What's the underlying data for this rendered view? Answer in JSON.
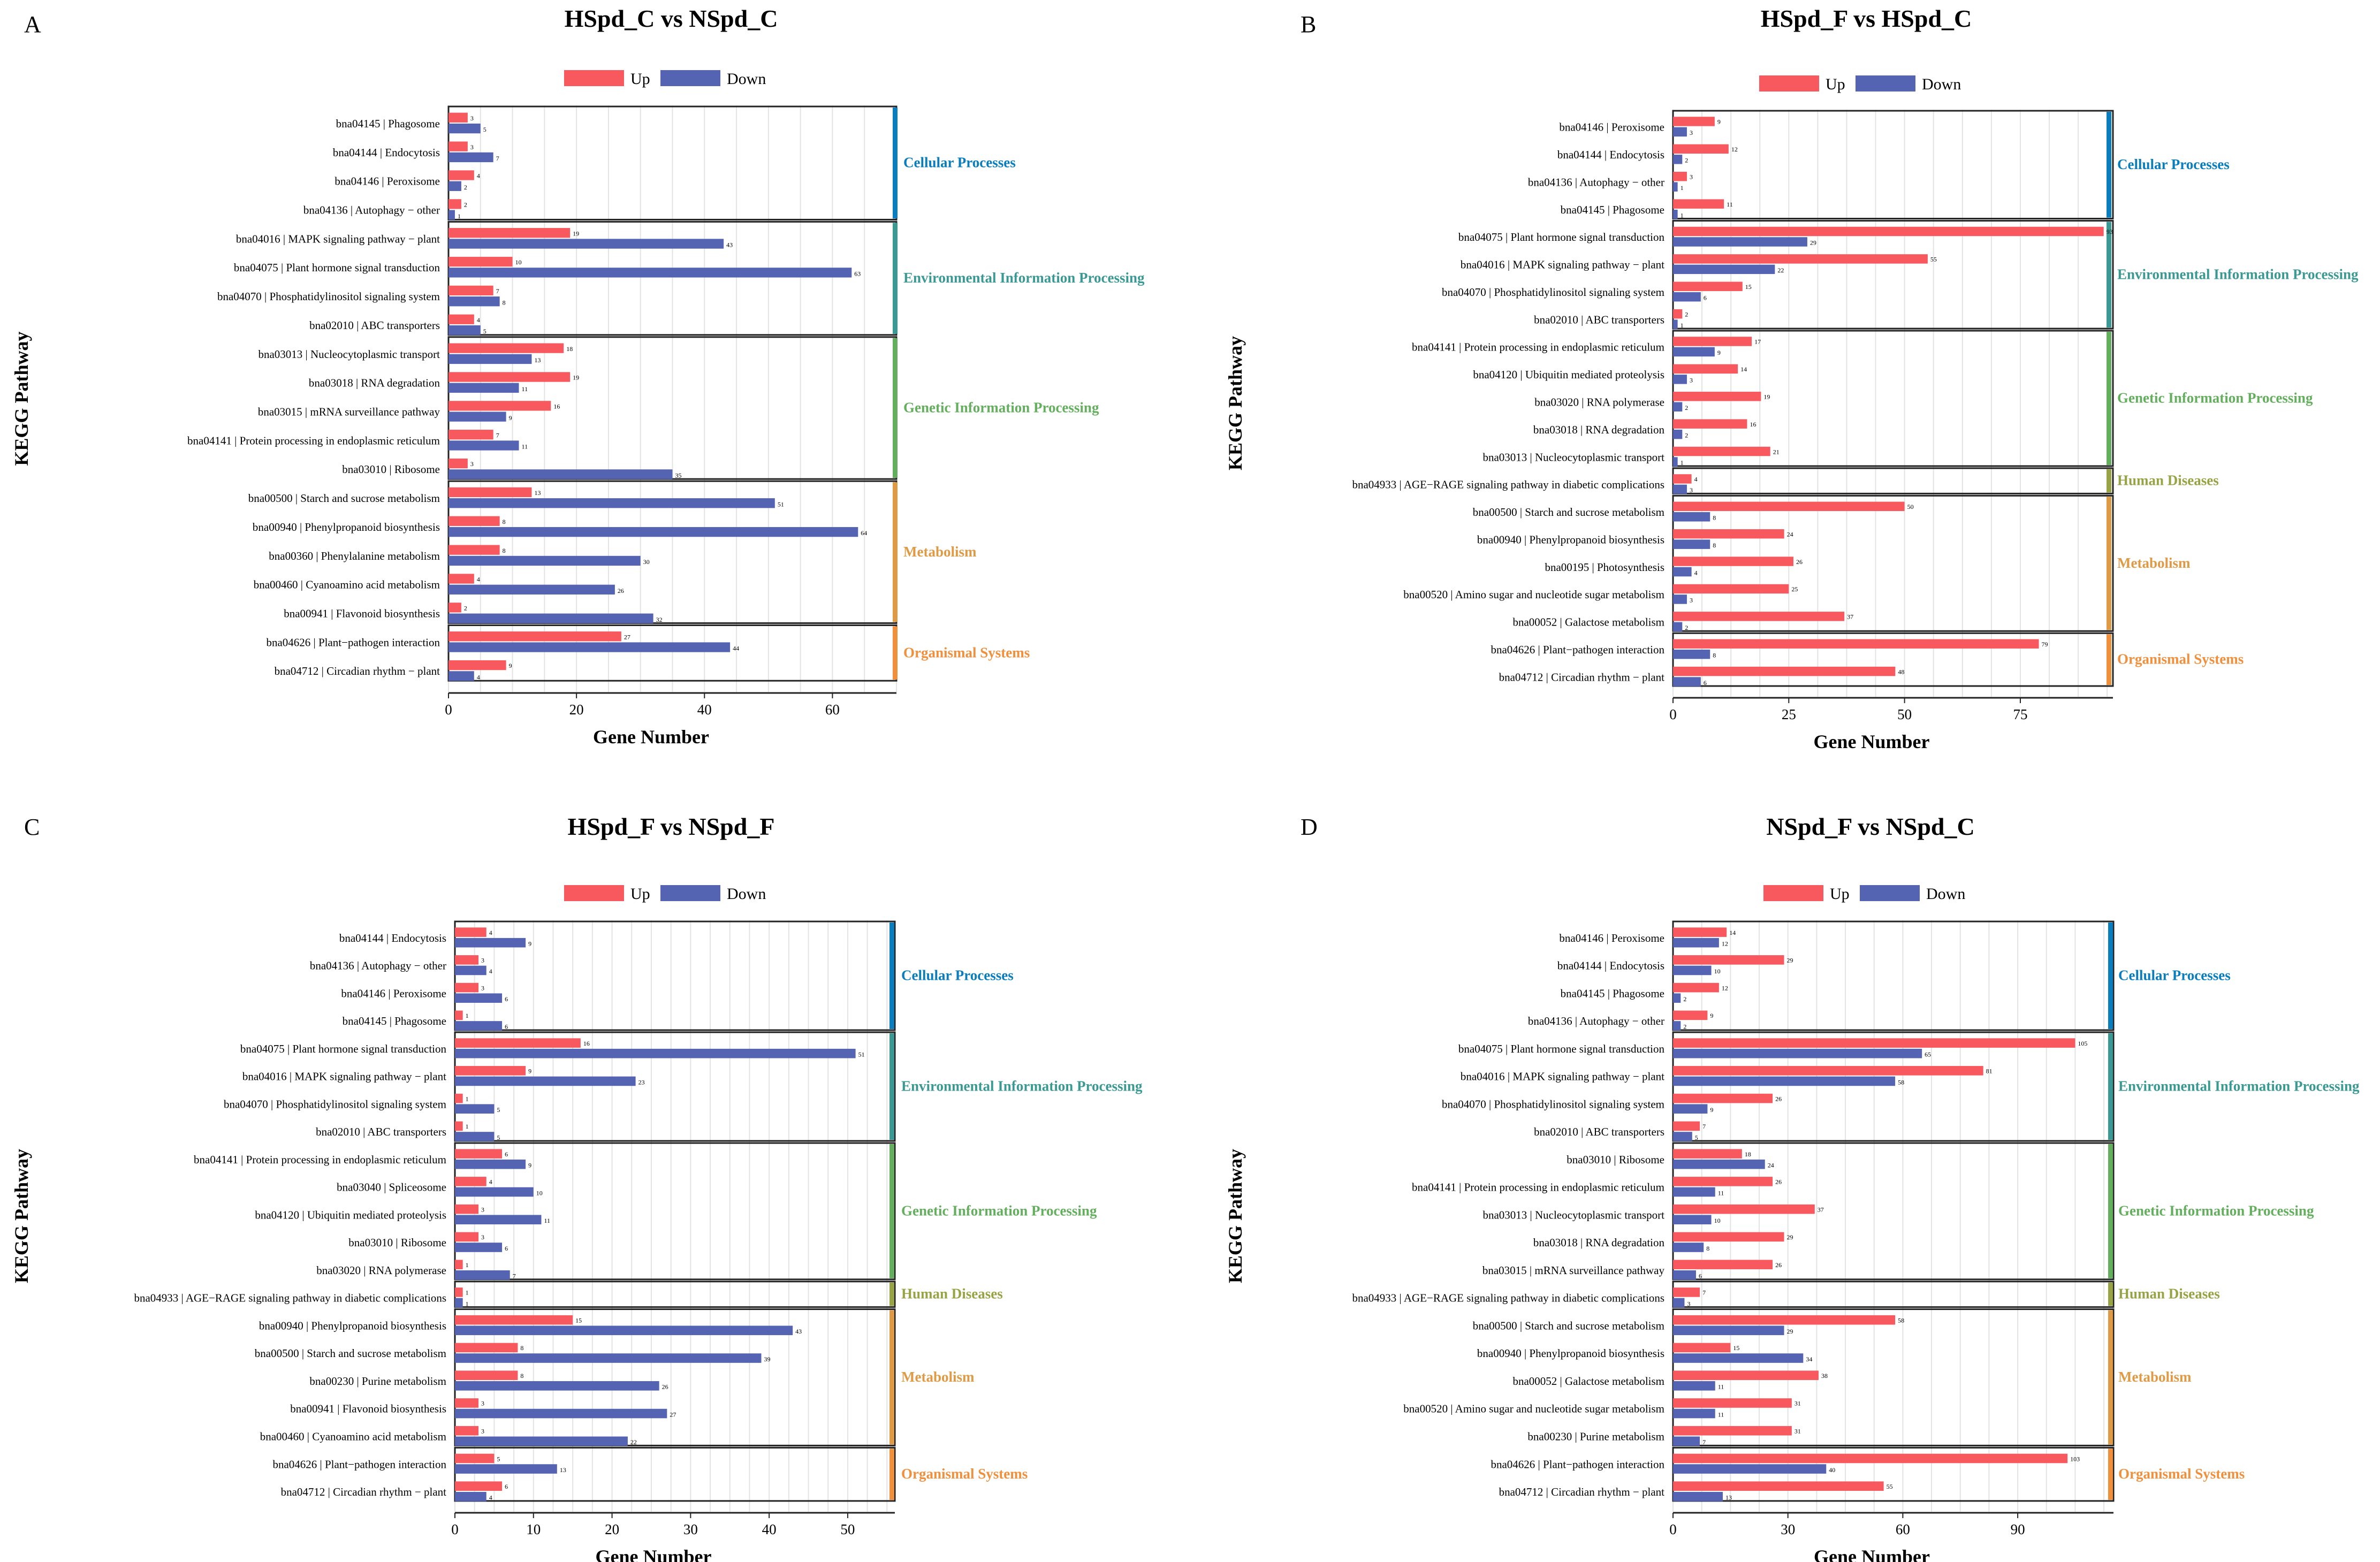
{
  "colors": {
    "up": "#F8595E",
    "down": "#5463B2",
    "Cellular Processes": "#0A7DBF",
    "Environmental Information Processing": "#3A9A93",
    "Genetic Information Processing": "#63AF5E",
    "Human Diseases": "#97A344",
    "Metabolism": "#DE9A45",
    "Organismal Systems": "#F08F3C"
  },
  "legend": {
    "up": "Up",
    "down": "Down"
  },
  "chart_data": [
    {
      "panel": "A",
      "type": "bar",
      "orientation": "horizontal",
      "title": "HSpd_C vs NSpd_C",
      "xlabel": "Gene Number",
      "ylabel": "KEGG Pathway",
      "xlim": [
        0,
        70
      ],
      "xticks": [
        0,
        20,
        40,
        60
      ],
      "groups": [
        {
          "name": "Cellular Processes",
          "pathways": [
            {
              "label": "bna04145 | Phagosome",
              "up": 3,
              "down": 5
            },
            {
              "label": "bna04144 | Endocytosis",
              "up": 3,
              "down": 7
            },
            {
              "label": "bna04146 | Peroxisome",
              "up": 4,
              "down": 2
            },
            {
              "label": "bna04136 | Autophagy − other",
              "up": 2,
              "down": 1
            }
          ]
        },
        {
          "name": "Environmental Information Processing",
          "pathways": [
            {
              "label": "bna04016 | MAPK signaling pathway − plant",
              "up": 19,
              "down": 43
            },
            {
              "label": "bna04075 | Plant hormone signal transduction",
              "up": 10,
              "down": 63
            },
            {
              "label": "bna04070 | Phosphatidylinositol signaling system",
              "up": 7,
              "down": 8
            },
            {
              "label": "bna02010 | ABC transporters",
              "up": 4,
              "down": 5
            }
          ]
        },
        {
          "name": "Genetic Information Processing",
          "pathways": [
            {
              "label": "bna03013 | Nucleocytoplasmic transport",
              "up": 18,
              "down": 13
            },
            {
              "label": "bna03018 | RNA degradation",
              "up": 19,
              "down": 11
            },
            {
              "label": "bna03015 | mRNA surveillance pathway",
              "up": 16,
              "down": 9
            },
            {
              "label": "bna04141 | Protein processing in endoplasmic reticulum",
              "up": 7,
              "down": 11
            },
            {
              "label": "bna03010 | Ribosome",
              "up": 3,
              "down": 35
            }
          ]
        },
        {
          "name": "Metabolism",
          "pathways": [
            {
              "label": "bna00500 | Starch and sucrose metabolism",
              "up": 13,
              "down": 51
            },
            {
              "label": "bna00940 | Phenylpropanoid biosynthesis",
              "up": 8,
              "down": 64
            },
            {
              "label": "bna00360 | Phenylalanine metabolism",
              "up": 8,
              "down": 30
            },
            {
              "label": "bna00460 | Cyanoamino acid metabolism",
              "up": 4,
              "down": 26
            },
            {
              "label": "bna00941 | Flavonoid biosynthesis",
              "up": 2,
              "down": 32
            }
          ]
        },
        {
          "name": "Organismal Systems",
          "pathways": [
            {
              "label": "bna04626 | Plant−pathogen interaction",
              "up": 27,
              "down": 44
            },
            {
              "label": "bna04712 | Circadian rhythm − plant",
              "up": 9,
              "down": 4
            }
          ]
        }
      ]
    },
    {
      "panel": "B",
      "type": "bar",
      "orientation": "horizontal",
      "title": "HSpd_F vs HSpd_C",
      "xlabel": "Gene Number",
      "ylabel": "KEGG Pathway",
      "xlim": [
        0,
        95
      ],
      "xticks": [
        0,
        25,
        50,
        75
      ],
      "groups": [
        {
          "name": "Cellular Processes",
          "pathways": [
            {
              "label": "bna04146 | Peroxisome",
              "up": 9,
              "down": 3
            },
            {
              "label": "bna04144 | Endocytosis",
              "up": 12,
              "down": 2
            },
            {
              "label": "bna04136 | Autophagy − other",
              "up": 3,
              "down": 1
            },
            {
              "label": "bna04145 | Phagosome",
              "up": 11,
              "down": 1
            }
          ]
        },
        {
          "name": "Environmental Information Processing",
          "pathways": [
            {
              "label": "bna04075 | Plant hormone signal transduction",
              "up": 93,
              "down": 29
            },
            {
              "label": "bna04016 | MAPK signaling pathway − plant",
              "up": 55,
              "down": 22
            },
            {
              "label": "bna04070 | Phosphatidylinositol signaling system",
              "up": 15,
              "down": 6
            },
            {
              "label": "bna02010 | ABC transporters",
              "up": 2,
              "down": 1
            }
          ]
        },
        {
          "name": "Genetic Information Processing",
          "pathways": [
            {
              "label": "bna04141 | Protein processing in endoplasmic reticulum",
              "up": 17,
              "down": 9
            },
            {
              "label": "bna04120 | Ubiquitin mediated proteolysis",
              "up": 14,
              "down": 3
            },
            {
              "label": "bna03020 | RNA polymerase",
              "up": 19,
              "down": 2
            },
            {
              "label": "bna03018 | RNA degradation",
              "up": 16,
              "down": 2
            },
            {
              "label": "bna03013 | Nucleocytoplasmic transport",
              "up": 21,
              "down": 1
            }
          ]
        },
        {
          "name": "Human Diseases",
          "pathways": [
            {
              "label": "bna04933 | AGE−RAGE signaling pathway in diabetic complications",
              "up": 4,
              "down": 3
            }
          ]
        },
        {
          "name": "Metabolism",
          "pathways": [
            {
              "label": "bna00500 | Starch and sucrose metabolism",
              "up": 50,
              "down": 8
            },
            {
              "label": "bna00940 | Phenylpropanoid biosynthesis",
              "up": 24,
              "down": 8
            },
            {
              "label": "bna00195 | Photosynthesis",
              "up": 26,
              "down": 4
            },
            {
              "label": "bna00520 | Amino sugar and nucleotide sugar metabolism",
              "up": 25,
              "down": 3
            },
            {
              "label": "bna00052 | Galactose metabolism",
              "up": 37,
              "down": 2
            }
          ]
        },
        {
          "name": "Organismal Systems",
          "pathways": [
            {
              "label": "bna04626 | Plant−pathogen interaction",
              "up": 79,
              "down": 8
            },
            {
              "label": "bna04712 | Circadian rhythm − plant",
              "up": 48,
              "down": 6
            }
          ]
        }
      ]
    },
    {
      "panel": "C",
      "type": "bar",
      "orientation": "horizontal",
      "title": "HSpd_F vs NSpd_F",
      "xlabel": "Gene Number",
      "ylabel": "KEGG Pathway",
      "xlim": [
        0,
        56
      ],
      "xticks": [
        0,
        10,
        20,
        30,
        40,
        50
      ],
      "groups": [
        {
          "name": "Cellular Processes",
          "pathways": [
            {
              "label": "bna04144 | Endocytosis",
              "up": 4,
              "down": 9
            },
            {
              "label": "bna04136 | Autophagy − other",
              "up": 3,
              "down": 4
            },
            {
              "label": "bna04146 | Peroxisome",
              "up": 3,
              "down": 6
            },
            {
              "label": "bna04145 | Phagosome",
              "up": 1,
              "down": 6
            }
          ]
        },
        {
          "name": "Environmental Information Processing",
          "pathways": [
            {
              "label": "bna04075 | Plant hormone signal transduction",
              "up": 16,
              "down": 51
            },
            {
              "label": "bna04016 | MAPK signaling pathway − plant",
              "up": 9,
              "down": 23
            },
            {
              "label": "bna04070 | Phosphatidylinositol signaling system",
              "up": 1,
              "down": 5
            },
            {
              "label": "bna02010 | ABC transporters",
              "up": 1,
              "down": 5
            }
          ]
        },
        {
          "name": "Genetic Information Processing",
          "pathways": [
            {
              "label": "bna04141 | Protein processing in endoplasmic reticulum",
              "up": 6,
              "down": 9
            },
            {
              "label": "bna03040 | Spliceosome",
              "up": 4,
              "down": 10
            },
            {
              "label": "bna04120 | Ubiquitin mediated proteolysis",
              "up": 3,
              "down": 11
            },
            {
              "label": "bna03010 | Ribosome",
              "up": 3,
              "down": 6
            },
            {
              "label": "bna03020 | RNA polymerase",
              "up": 1,
              "down": 7
            }
          ]
        },
        {
          "name": "Human Diseases",
          "pathways": [
            {
              "label": "bna04933 | AGE−RAGE signaling pathway in diabetic complications",
              "up": 1,
              "down": 1
            }
          ]
        },
        {
          "name": "Metabolism",
          "pathways": [
            {
              "label": "bna00940 | Phenylpropanoid biosynthesis",
              "up": 15,
              "down": 43
            },
            {
              "label": "bna00500 | Starch and sucrose metabolism",
              "up": 8,
              "down": 39
            },
            {
              "label": "bna00230 | Purine metabolism",
              "up": 8,
              "down": 26
            },
            {
              "label": "bna00941 | Flavonoid biosynthesis",
              "up": 3,
              "down": 27
            },
            {
              "label": "bna00460 | Cyanoamino acid metabolism",
              "up": 3,
              "down": 22
            }
          ]
        },
        {
          "name": "Organismal Systems",
          "pathways": [
            {
              "label": "bna04626 | Plant−pathogen interaction",
              "up": 5,
              "down": 13
            },
            {
              "label": "bna04712 | Circadian rhythm − plant",
              "up": 6,
              "down": 4
            }
          ]
        }
      ]
    },
    {
      "panel": "D",
      "type": "bar",
      "orientation": "horizontal",
      "title": "NSpd_F vs NSpd_C",
      "xlabel": "Gene Number",
      "ylabel": "KEGG Pathway",
      "xlim": [
        0,
        115
      ],
      "xticks": [
        0,
        30,
        60,
        90
      ],
      "groups": [
        {
          "name": "Cellular Processes",
          "pathways": [
            {
              "label": "bna04146 | Peroxisome",
              "up": 14,
              "down": 12
            },
            {
              "label": "bna04144 | Endocytosis",
              "up": 29,
              "down": 10
            },
            {
              "label": "bna04145 | Phagosome",
              "up": 12,
              "down": 2
            },
            {
              "label": "bna04136 | Autophagy − other",
              "up": 9,
              "down": 2
            }
          ]
        },
        {
          "name": "Environmental Information Processing",
          "pathways": [
            {
              "label": "bna04075 | Plant hormone signal transduction",
              "up": 105,
              "down": 65
            },
            {
              "label": "bna04016 | MAPK signaling pathway − plant",
              "up": 81,
              "down": 58
            },
            {
              "label": "bna04070 | Phosphatidylinositol signaling system",
              "up": 26,
              "down": 9
            },
            {
              "label": "bna02010 | ABC transporters",
              "up": 7,
              "down": 5
            }
          ]
        },
        {
          "name": "Genetic Information Processing",
          "pathways": [
            {
              "label": "bna03010 | Ribosome",
              "up": 18,
              "down": 24
            },
            {
              "label": "bna04141 | Protein processing in endoplasmic reticulum",
              "up": 26,
              "down": 11
            },
            {
              "label": "bna03013 | Nucleocytoplasmic transport",
              "up": 37,
              "down": 10
            },
            {
              "label": "bna03018 | RNA degradation",
              "up": 29,
              "down": 8
            },
            {
              "label": "bna03015 | mRNA surveillance pathway",
              "up": 26,
              "down": 6
            }
          ]
        },
        {
          "name": "Human Diseases",
          "pathways": [
            {
              "label": "bna04933 | AGE−RAGE signaling pathway in diabetic complications",
              "up": 7,
              "down": 3
            }
          ]
        },
        {
          "name": "Metabolism",
          "pathways": [
            {
              "label": "bna00500 | Starch and sucrose metabolism",
              "up": 58,
              "down": 29
            },
            {
              "label": "bna00940 | Phenylpropanoid biosynthesis",
              "up": 15,
              "down": 34
            },
            {
              "label": "bna00052 | Galactose metabolism",
              "up": 38,
              "down": 11
            },
            {
              "label": "bna00520 | Amino sugar and nucleotide sugar metabolism",
              "up": 31,
              "down": 11
            },
            {
              "label": "bna00230 | Purine metabolism",
              "up": 31,
              "down": 7
            }
          ]
        },
        {
          "name": "Organismal Systems",
          "pathways": [
            {
              "label": "bna04626 | Plant−pathogen interaction",
              "up": 103,
              "down": 40
            },
            {
              "label": "bna04712 | Circadian rhythm − plant",
              "up": 55,
              "down": 13
            }
          ]
        }
      ]
    }
  ]
}
